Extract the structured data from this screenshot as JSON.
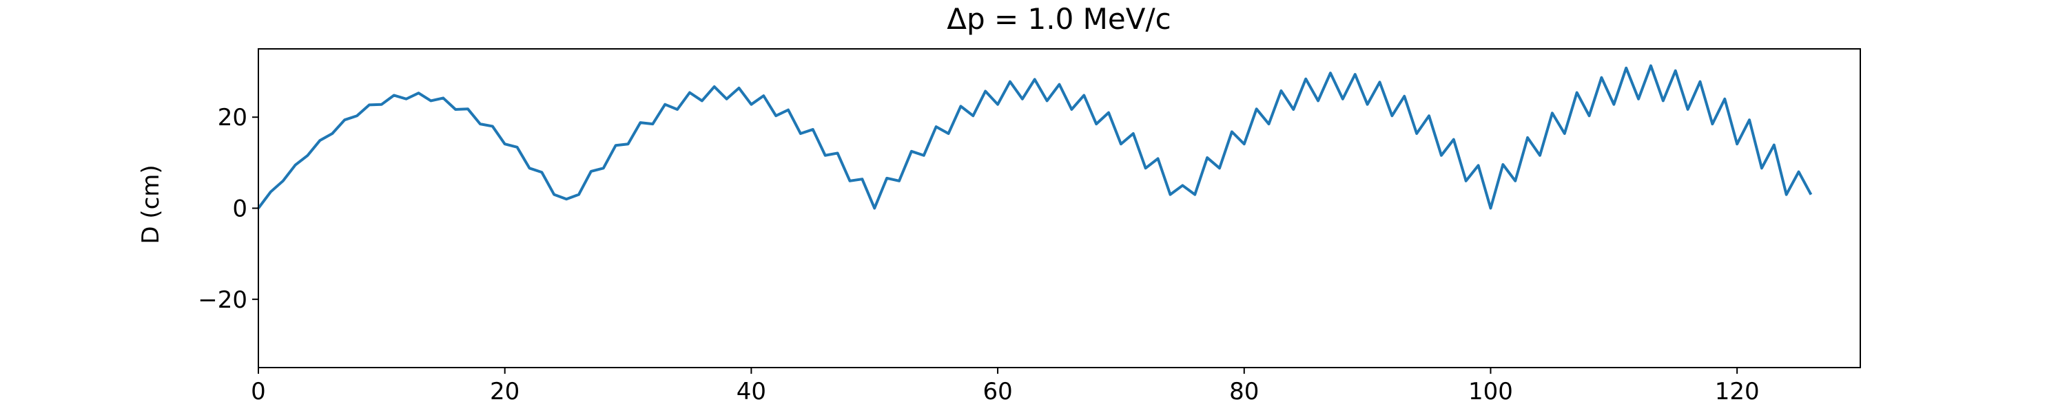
{
  "chart_data": {
    "type": "line",
    "title": "Δp = 1.0 MeV/c",
    "y_label": "D (cm)",
    "x": [
      0,
      1,
      2,
      3,
      4,
      5,
      6,
      7,
      8,
      9,
      10,
      11,
      12,
      13,
      14,
      15,
      16,
      17,
      18,
      19,
      20,
      21,
      22,
      23,
      24,
      25,
      26,
      27,
      28,
      29,
      30,
      31,
      32,
      33,
      34,
      35,
      36,
      37,
      38,
      39,
      40,
      41,
      42,
      43,
      44,
      45,
      46,
      47,
      48,
      49,
      50,
      51,
      52,
      53,
      54,
      55,
      56,
      57,
      58,
      59,
      60,
      61,
      62,
      63,
      64,
      65,
      66,
      67,
      68,
      69,
      70,
      71,
      72,
      73,
      74,
      75,
      76,
      77,
      78,
      79,
      80,
      81,
      82,
      83,
      84,
      85,
      86,
      87,
      88,
      89,
      90,
      91,
      92,
      93,
      94,
      95,
      96,
      97,
      98,
      99,
      100,
      101,
      102,
      103,
      104,
      105,
      106,
      107,
      108,
      109,
      110,
      111,
      112,
      113,
      114,
      115,
      116,
      117,
      118,
      119,
      120,
      121,
      122,
      123,
      124,
      125,
      126
    ],
    "series": [
      {
        "color": "#1f77b4",
        "values": [
          0,
          3.6,
          6,
          9.5,
          11.6,
          14.9,
          16.4,
          19.4,
          20.3,
          22.7,
          22.8,
          24.8,
          24,
          25.3,
          23.6,
          24.2,
          21.7,
          21.8,
          18.5,
          18,
          14.1,
          13.4,
          8.8,
          7.9,
          3,
          2,
          3,
          8.1,
          8.8,
          13.8,
          14.1,
          18.8,
          18.5,
          22.8,
          21.7,
          25.4,
          23.6,
          26.7,
          24,
          26.4,
          22.8,
          24.7,
          20.3,
          21.6,
          16.4,
          17.3,
          11.6,
          12.1,
          6,
          6.4,
          0,
          6.6,
          6,
          12.5,
          11.6,
          17.9,
          16.4,
          22.4,
          20.3,
          25.7,
          22.8,
          27.8,
          24,
          28.3,
          23.6,
          27.2,
          21.7,
          24.8,
          18.5,
          21,
          14.1,
          16.4,
          8.8,
          10.9,
          3,
          5,
          3,
          11.1,
          8.8,
          16.8,
          14.1,
          21.8,
          18.5,
          25.8,
          21.7,
          28.4,
          23.6,
          29.7,
          24,
          29.4,
          22.8,
          27.7,
          20.3,
          24.6,
          16.4,
          20.3,
          11.6,
          15.1,
          6,
          9.4,
          0,
          9.6,
          6,
          15.5,
          11.6,
          20.9,
          16.4,
          25.4,
          20.3,
          28.7,
          22.8,
          30.8,
          24,
          31.3,
          23.6,
          30.2,
          21.7,
          27.8,
          18.5,
          24,
          14.1,
          19.4,
          8.8,
          13.9,
          3,
          8,
          3
        ]
      }
    ],
    "xlim": [
      0,
      130
    ],
    "ylim": [
      -35,
      35
    ],
    "xticks": [
      0,
      20,
      40,
      60,
      80,
      100,
      120
    ],
    "yticks": [
      {
        "value": -20,
        "label": "−20"
      },
      0,
      20
    ]
  }
}
